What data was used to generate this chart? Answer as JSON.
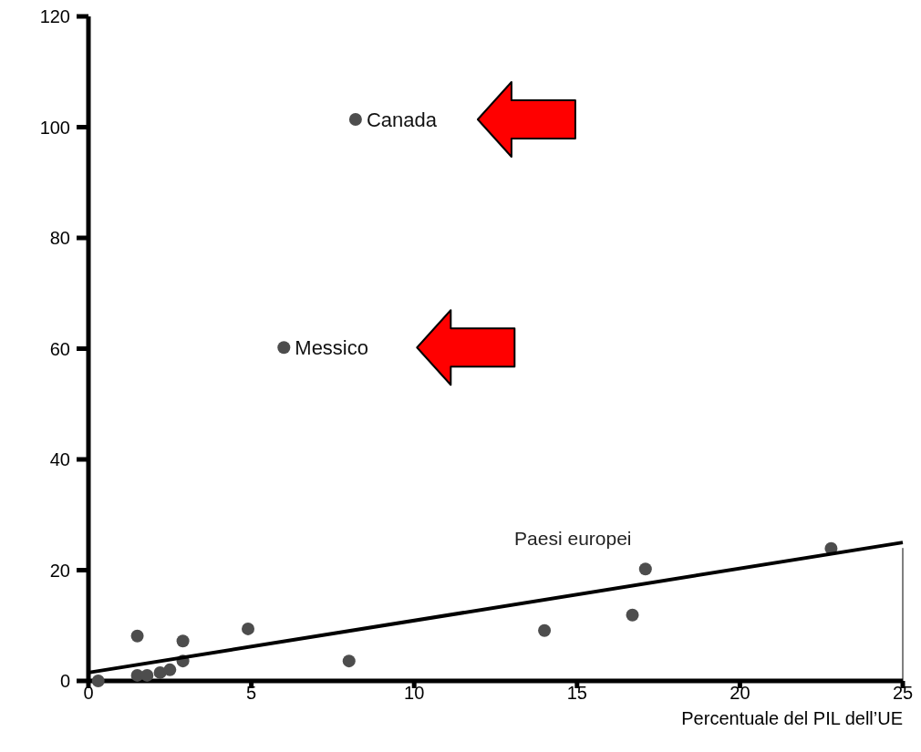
{
  "chart_data": {
    "type": "scatter",
    "xlabel": "Percentuale del PIL dell’UE",
    "xlim": [
      0,
      25
    ],
    "xticks": [
      0,
      5,
      10,
      15,
      20,
      25
    ],
    "ylim": [
      0,
      120
    ],
    "yticks": [
      0,
      20,
      40,
      60,
      80,
      100,
      120
    ],
    "grid": false,
    "series": [
      {
        "color": "#4d4d4d",
        "marker": "circle",
        "x": [
          0.3,
          1.5,
          1.5,
          1.8,
          2.2,
          2.5,
          2.9,
          2.9,
          4.9,
          8.0,
          14.0,
          16.7,
          17.1,
          22.8,
          8.2,
          6.0
        ],
        "values": [
          0,
          8.1,
          1,
          1,
          1.5,
          2,
          7.2,
          3.6,
          9.4,
          3.6,
          9.1,
          11.9,
          20.2,
          23.9,
          101.4,
          60.2
        ]
      },
      {
        "type": "line",
        "color": "#000000",
        "x": [
          0,
          25
        ],
        "values": [
          1.5,
          25
        ]
      }
    ],
    "annotations": [
      {
        "text": "Canada",
        "x": 8.2,
        "y": 101.4
      },
      {
        "text": "Messico",
        "x": 6.0,
        "y": 60.2
      },
      "Paesi europei"
    ]
  }
}
